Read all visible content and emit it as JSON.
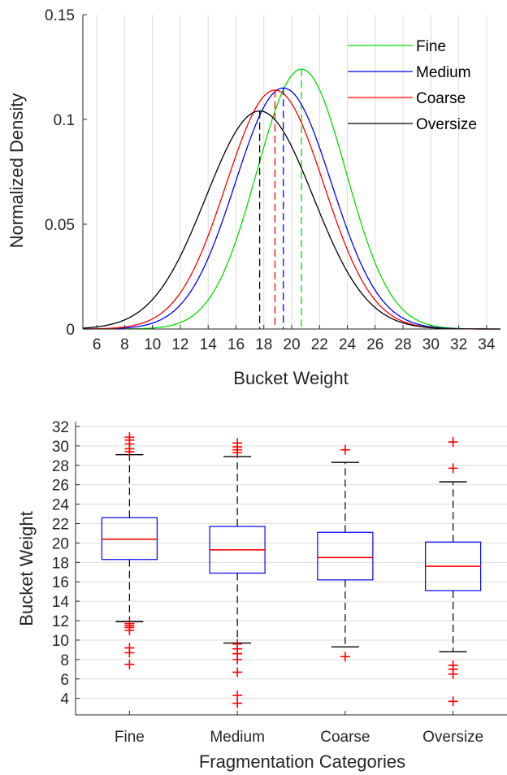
{
  "chart_data": [
    {
      "type": "line",
      "xlabel": "Bucket Weight",
      "ylabel": "Normalized Density",
      "xlim": [
        5,
        35
      ],
      "ylim": [
        0,
        0.15
      ],
      "xticks": [
        6,
        8,
        10,
        12,
        14,
        16,
        18,
        20,
        22,
        24,
        26,
        28,
        30,
        32,
        34
      ],
      "yticks": [
        0,
        0.05,
        0.1,
        0.15
      ],
      "ytick_labels": [
        "0",
        "0.05",
        "0.1",
        "0.15"
      ],
      "grid": "x",
      "legend_position": "top-right",
      "series": [
        {
          "name": "Fine",
          "color": "#00e000",
          "mean": 20.7,
          "peak": 0.124,
          "std": 3.2
        },
        {
          "name": "Medium",
          "color": "#0000ff",
          "mean": 19.4,
          "peak": 0.115,
          "std": 3.45
        },
        {
          "name": "Coarse",
          "color": "#ff0000",
          "mean": 18.8,
          "peak": 0.114,
          "std": 3.5
        },
        {
          "name": "Oversize",
          "color": "#000000",
          "mean": 17.7,
          "peak": 0.104,
          "std": 3.85
        }
      ]
    },
    {
      "type": "box",
      "xlabel": "Fragmentation Categories",
      "ylabel": "Bucket Weight",
      "categories": [
        "Fine",
        "Medium",
        "Coarse",
        "Oversize"
      ],
      "ylim": [
        2.3,
        32.5
      ],
      "yticks": [
        4,
        6,
        8,
        10,
        12,
        14,
        16,
        18,
        20,
        22,
        24,
        26,
        28,
        30,
        32
      ],
      "grid": "y",
      "box_color": "#0000ff",
      "median_color": "#ff0000",
      "outlier_color": "#ff0000",
      "boxes": [
        {
          "category": "Fine",
          "whisker_low": 11.9,
          "q1": 18.3,
          "median": 20.4,
          "q3": 22.6,
          "whisker_high": 29.1,
          "outliers": [
            30.9,
            30.6,
            30.2,
            29.7,
            29.4,
            11.7,
            11.5,
            11.3,
            11.0,
            9.2,
            8.7,
            7.5
          ]
        },
        {
          "category": "Medium",
          "whisker_low": 9.7,
          "q1": 16.9,
          "median": 19.3,
          "q3": 21.7,
          "whisker_high": 28.9,
          "outliers": [
            30.3,
            29.9,
            29.6,
            29.3,
            9.6,
            9.1,
            8.6,
            8.0,
            6.7,
            4.3,
            3.5
          ]
        },
        {
          "category": "Coarse",
          "whisker_low": 9.3,
          "q1": 16.2,
          "median": 18.5,
          "q3": 21.1,
          "whisker_high": 28.3,
          "outliers": [
            29.6,
            8.3
          ]
        },
        {
          "category": "Oversize",
          "whisker_low": 8.8,
          "q1": 15.1,
          "median": 17.6,
          "q3": 20.1,
          "whisker_high": 26.3,
          "outliers": [
            30.4,
            27.7,
            7.4,
            7.0,
            6.5,
            3.7
          ]
        }
      ]
    }
  ]
}
